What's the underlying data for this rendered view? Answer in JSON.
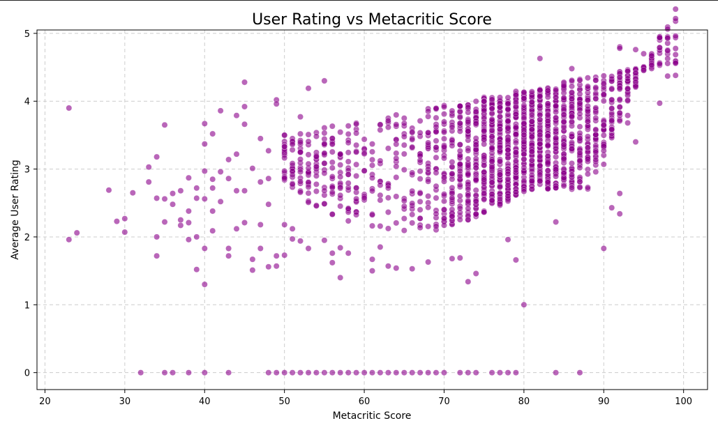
{
  "chart_data": {
    "type": "scatter",
    "title": "User Rating vs Metacritic Score",
    "xlabel": "Metacritic Score",
    "ylabel": "Average User Rating",
    "xlim": [
      19,
      103
    ],
    "ylim": [
      -0.25,
      5.05
    ],
    "x_ticks": [
      20,
      30,
      40,
      50,
      60,
      70,
      80,
      90,
      100
    ],
    "y_ticks": [
      0,
      1,
      2,
      3,
      4,
      5
    ],
    "grid": true,
    "grid_style": "dashed",
    "legend": "none",
    "marker_color": "#8b008b",
    "marker_alpha": 0.6,
    "marker_edge": "#ffffff",
    "points_description": "Dense cloud of several thousand games; outliers listed explicitly",
    "outliers": [
      [
        23,
        3.9
      ],
      [
        23,
        1.96
      ],
      [
        24,
        2.06
      ],
      [
        28,
        2.69
      ],
      [
        29,
        2.23
      ],
      [
        30,
        2.27
      ],
      [
        30,
        2.07
      ],
      [
        31,
        2.65
      ],
      [
        33,
        3.03
      ],
      [
        33,
        2.81
      ],
      [
        34,
        3.18
      ],
      [
        34,
        2.57
      ],
      [
        34,
        2.0
      ],
      [
        34,
        1.72
      ],
      [
        35,
        3.65
      ],
      [
        35,
        2.56
      ],
      [
        35,
        2.22
      ],
      [
        36,
        2.64
      ],
      [
        36,
        2.48
      ],
      [
        37,
        2.25
      ],
      [
        37,
        2.17
      ],
      [
        37,
        2.68
      ],
      [
        38,
        2.87
      ],
      [
        38,
        2.38
      ],
      [
        38,
        1.96
      ],
      [
        38,
        2.21
      ],
      [
        39,
        2.72
      ],
      [
        39,
        2.57
      ],
      [
        39,
        1.52
      ],
      [
        39,
        2.0
      ],
      [
        40,
        3.67
      ],
      [
        40,
        3.37
      ],
      [
        40,
        2.97
      ],
      [
        40,
        2.56
      ],
      [
        40,
        1.83
      ],
      [
        40,
        1.3
      ],
      [
        41,
        3.52
      ],
      [
        41,
        2.85
      ],
      [
        41,
        2.72
      ],
      [
        41,
        2.38
      ],
      [
        41,
        2.09
      ],
      [
        42,
        3.86
      ],
      [
        42,
        2.96
      ],
      [
        42,
        2.52
      ],
      [
        43,
        3.14
      ],
      [
        43,
        2.86
      ],
      [
        43,
        1.83
      ],
      [
        43,
        1.72
      ],
      [
        44,
        3.79
      ],
      [
        44,
        3.22
      ],
      [
        44,
        2.68
      ],
      [
        44,
        2.12
      ],
      [
        45,
        4.28
      ],
      [
        45,
        3.92
      ],
      [
        45,
        3.66
      ],
      [
        45,
        2.68
      ],
      [
        45,
        2.21
      ],
      [
        46,
        3.01
      ],
      [
        46,
        1.67
      ],
      [
        46,
        1.51
      ],
      [
        47,
        3.45
      ],
      [
        47,
        2.81
      ],
      [
        47,
        2.18
      ],
      [
        47,
        1.83
      ],
      [
        48,
        3.27
      ],
      [
        48,
        2.86
      ],
      [
        48,
        2.48
      ],
      [
        48,
        1.56
      ],
      [
        49,
        4.02
      ],
      [
        49,
        3.96
      ],
      [
        49,
        1.72
      ],
      [
        49,
        1.57
      ],
      [
        50,
        3.5
      ],
      [
        50,
        2.18
      ],
      [
        50,
        1.73
      ],
      [
        51,
        2.12
      ],
      [
        51,
        1.97
      ],
      [
        52,
        3.77
      ],
      [
        52,
        1.94
      ],
      [
        53,
        4.19
      ],
      [
        53,
        1.83
      ],
      [
        55,
        4.3
      ],
      [
        55,
        1.95
      ],
      [
        56,
        1.62
      ],
      [
        56,
        1.76
      ],
      [
        57,
        1.4
      ],
      [
        57,
        1.84
      ],
      [
        58,
        1.76
      ],
      [
        61,
        1.5
      ],
      [
        61,
        1.67
      ],
      [
        62,
        1.85
      ],
      [
        63,
        1.57
      ],
      [
        64,
        1.54
      ],
      [
        66,
        1.53
      ],
      [
        68,
        1.63
      ],
      [
        71,
        1.68
      ],
      [
        72,
        1.69
      ],
      [
        73,
        1.34
      ],
      [
        74,
        1.46
      ],
      [
        78,
        1.96
      ],
      [
        79,
        1.66
      ],
      [
        80,
        1.0
      ],
      [
        84,
        2.22
      ],
      [
        90,
        1.83
      ],
      [
        90,
        3.07
      ],
      [
        91,
        2.43
      ],
      [
        92,
        2.64
      ],
      [
        92,
        2.34
      ],
      [
        93,
        3.68
      ],
      [
        93,
        3.79
      ],
      [
        94,
        3.4
      ],
      [
        97,
        3.97
      ],
      [
        98,
        4.37
      ],
      [
        99,
        4.38
      ],
      [
        92,
        4.8
      ],
      [
        92,
        4.78
      ],
      [
        94,
        4.76
      ],
      [
        95,
        4.7
      ],
      [
        86,
        4.48
      ],
      [
        82,
        4.63
      ]
    ],
    "zero_rating_scores": [
      32,
      35,
      36,
      38,
      40,
      43,
      48,
      49,
      50,
      51,
      52,
      53,
      54,
      55,
      56,
      57,
      58,
      59,
      60,
      61,
      62,
      63,
      64,
      65,
      66,
      67,
      68,
      69,
      70,
      72,
      73,
      74,
      76,
      77,
      78,
      79,
      84,
      87
    ],
    "dense_region": {
      "x_range": [
        50,
        99
      ],
      "description": "Per-score vertical bands of ratings; lower bound ~2.0-2.7, upper bound rising from ~3.5 at 50 to ~4.6 at 92"
    }
  }
}
